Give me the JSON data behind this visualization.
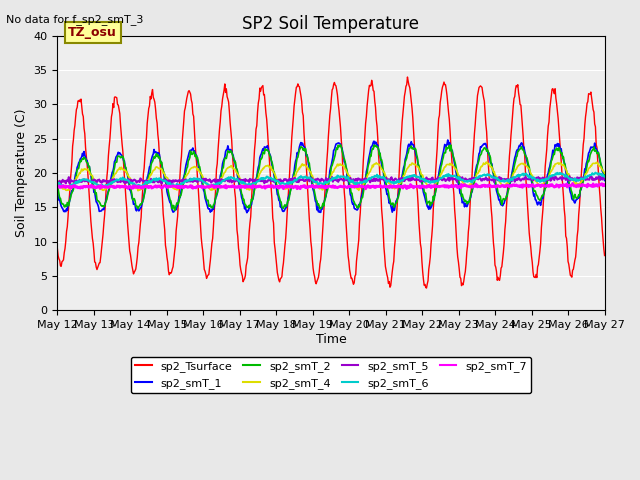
{
  "title": "SP2 Soil Temperature",
  "subtitle": "No data for f_sp2_smT_3",
  "xlabel": "Time",
  "ylabel": "Soil Temperature (C)",
  "ylim": [
    0,
    40
  ],
  "tz_label": "TZ_osu",
  "x_tick_labels": [
    "May 12",
    "May 13",
    "May 14",
    "May 15",
    "May 16",
    "May 17",
    "May 18",
    "May 19",
    "May 20",
    "May 21",
    "May 22",
    "May 23",
    "May 24",
    "May 25",
    "May 26",
    "May 27"
  ],
  "legend_entries": [
    {
      "label": "sp2_Tsurface",
      "color": "#FF0000"
    },
    {
      "label": "sp2_smT_1",
      "color": "#0000FF"
    },
    {
      "label": "sp2_smT_2",
      "color": "#00BB00"
    },
    {
      "label": "sp2_smT_4",
      "color": "#DDDD00"
    },
    {
      "label": "sp2_smT_5",
      "color": "#9900CC"
    },
    {
      "label": "sp2_smT_6",
      "color": "#00CCCC"
    },
    {
      "label": "sp2_smT_7",
      "color": "#FF00FF"
    }
  ],
  "background_color": "#E8E8E8",
  "plot_bg_color": "#EEEEEE",
  "yticks": [
    0,
    5,
    10,
    15,
    20,
    25,
    30,
    35,
    40
  ]
}
